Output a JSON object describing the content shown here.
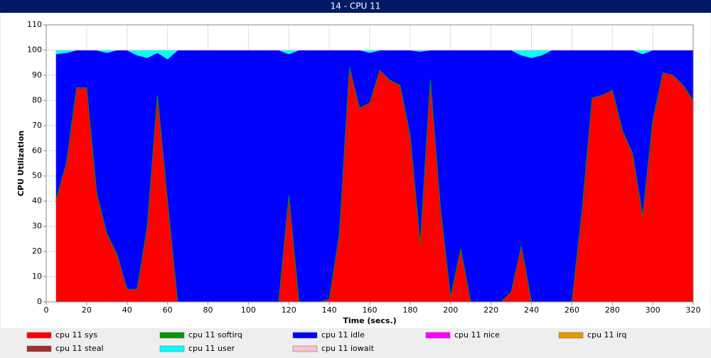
{
  "chart_data": {
    "type": "stacked_area",
    "title": "14 - CPU 11",
    "x_label": "Time (secs.)",
    "y_label": "CPU Utilization",
    "xlim": [
      0,
      320
    ],
    "xticks": [
      0,
      20,
      40,
      60,
      80,
      100,
      120,
      140,
      160,
      180,
      200,
      220,
      240,
      260,
      280,
      300,
      320
    ],
    "ylim": [
      0,
      110
    ],
    "yticks": [
      0,
      10,
      20,
      30,
      40,
      50,
      60,
      70,
      80,
      90,
      100,
      110
    ],
    "grid": true,
    "x": [
      5,
      10,
      15,
      20,
      25,
      30,
      35,
      40,
      45,
      50,
      55,
      60,
      65,
      70,
      75,
      80,
      85,
      90,
      95,
      100,
      105,
      110,
      115,
      120,
      125,
      130,
      135,
      140,
      145,
      150,
      155,
      160,
      165,
      170,
      175,
      180,
      185,
      190,
      195,
      200,
      205,
      210,
      215,
      220,
      225,
      230,
      235,
      240,
      245,
      250,
      255,
      260,
      265,
      270,
      275,
      280,
      285,
      290,
      295,
      300,
      305,
      310,
      315,
      320
    ],
    "series": [
      {
        "name": "cpu 11 sys",
        "color": "#ff0000",
        "values": [
          41,
          55,
          85,
          85,
          43,
          27,
          19,
          5,
          5,
          30,
          82,
          40,
          0,
          0,
          0,
          0,
          0,
          0,
          0,
          0,
          0,
          0,
          0,
          42,
          0,
          0,
          0,
          1,
          27,
          93,
          77,
          79,
          92,
          88,
          86,
          66,
          23,
          88,
          37,
          2,
          21,
          0,
          0,
          0,
          0,
          4,
          22,
          0,
          0,
          0,
          0,
          0,
          36,
          81,
          82,
          84,
          68,
          59,
          34,
          72,
          91,
          90,
          86,
          80
        ]
      },
      {
        "name": "cpu 11 softirq",
        "color": "#009900",
        "values": [
          0,
          0,
          0,
          0,
          0,
          0,
          0,
          0,
          0,
          0,
          0,
          0,
          0,
          0,
          0,
          0,
          0,
          0,
          0,
          0,
          0,
          0,
          0,
          0,
          0,
          0,
          0,
          0,
          0,
          0,
          0,
          0,
          0,
          0,
          0,
          0,
          0,
          0,
          0,
          0,
          0,
          0,
          0,
          0,
          0,
          0,
          0,
          0,
          0,
          0,
          0,
          0,
          0,
          0,
          0,
          0,
          0,
          0,
          0,
          0,
          0,
          0,
          0,
          0
        ]
      },
      {
        "name": "cpu 11 idle",
        "color": "#0000ff",
        "values": [
          57.5,
          44,
          15,
          15,
          57,
          72,
          81,
          95,
          93,
          67,
          17,
          56.5,
          100,
          100,
          100,
          100,
          100,
          100,
          100,
          100,
          100,
          100,
          100,
          56.5,
          100,
          100,
          100,
          99,
          73,
          7,
          23,
          20,
          8,
          12,
          14,
          34,
          76.5,
          12,
          63,
          98,
          79,
          100,
          100,
          100,
          100,
          96,
          76,
          97,
          98,
          100,
          100,
          100,
          64,
          19,
          18,
          16,
          32,
          41,
          64.5,
          28,
          9,
          10,
          14,
          20
        ]
      },
      {
        "name": "cpu 11 nice",
        "color": "#ff00ff",
        "values": [
          0,
          0,
          0,
          0,
          0,
          0,
          0,
          0,
          0,
          0,
          0,
          0,
          0,
          0,
          0,
          0,
          0,
          0,
          0,
          0,
          0,
          0,
          0,
          0,
          0,
          0,
          0,
          0,
          0,
          0,
          0,
          0,
          0,
          0,
          0,
          0,
          0,
          0,
          0,
          0,
          0,
          0,
          0,
          0,
          0,
          0,
          0,
          0,
          0,
          0,
          0,
          0,
          0,
          0,
          0,
          0,
          0,
          0,
          0,
          0,
          0,
          0,
          0,
          0
        ]
      },
      {
        "name": "cpu 11 irq",
        "color": "#e69900",
        "values": [
          0,
          0,
          0,
          0,
          0,
          0,
          0,
          0,
          0,
          0,
          0,
          0,
          0,
          0,
          0,
          0,
          0,
          0,
          0,
          0,
          0,
          0,
          0,
          0,
          0,
          0,
          0,
          0,
          0,
          0,
          0,
          0,
          0,
          0,
          0,
          0,
          0,
          0,
          0,
          0,
          0,
          0,
          0,
          0,
          0,
          0,
          0,
          0,
          0,
          0,
          0,
          0,
          0,
          0,
          0,
          0,
          0,
          0,
          0,
          0,
          0,
          0,
          0,
          0
        ]
      },
      {
        "name": "cpu 11 steal",
        "color": "#a03030",
        "values": [
          0,
          0,
          0,
          0,
          0,
          0,
          0,
          0,
          0,
          0,
          0,
          0,
          0,
          0,
          0,
          0,
          0,
          0,
          0,
          0,
          0,
          0,
          0,
          0,
          0,
          0,
          0,
          0,
          0,
          0,
          0,
          0,
          0,
          0,
          0,
          0,
          0,
          0,
          0,
          0,
          0,
          0,
          0,
          0,
          0,
          0,
          0,
          0,
          0,
          0,
          0,
          0,
          0,
          0,
          0,
          0,
          0,
          0,
          0,
          0,
          0,
          0,
          0,
          0
        ]
      },
      {
        "name": "cpu 11 user",
        "color": "#00ffff",
        "values": [
          1.5,
          1,
          0,
          0,
          0,
          1,
          0,
          0,
          2,
          3,
          1,
          3.5,
          0,
          0,
          0,
          0,
          0,
          0,
          0,
          0,
          0,
          0,
          0,
          1.5,
          0,
          0,
          0,
          0,
          0,
          0,
          0,
          1,
          0,
          0,
          0,
          0,
          0.5,
          0,
          0,
          0,
          0,
          0,
          0,
          0,
          0,
          0,
          2,
          3,
          2,
          0,
          0,
          0,
          0,
          0,
          0,
          0,
          0,
          0,
          1.5,
          0,
          0,
          0,
          0,
          0
        ]
      },
      {
        "name": "cpu 11 iowait",
        "color": "#ffc0cb",
        "values": [
          0,
          0,
          0,
          0,
          0,
          0,
          0,
          0,
          0,
          0,
          0,
          0,
          0,
          0,
          0,
          0,
          0,
          0,
          0,
          0,
          0,
          0,
          0,
          0,
          0,
          0,
          0,
          0,
          0,
          0,
          0,
          0,
          0,
          0,
          0,
          0,
          0,
          0,
          0,
          0,
          0,
          0,
          0,
          0,
          0,
          0,
          0,
          0,
          0,
          0,
          0,
          0,
          0,
          0,
          0,
          0,
          0,
          0,
          0,
          0,
          0,
          0,
          0,
          0
        ]
      }
    ]
  }
}
